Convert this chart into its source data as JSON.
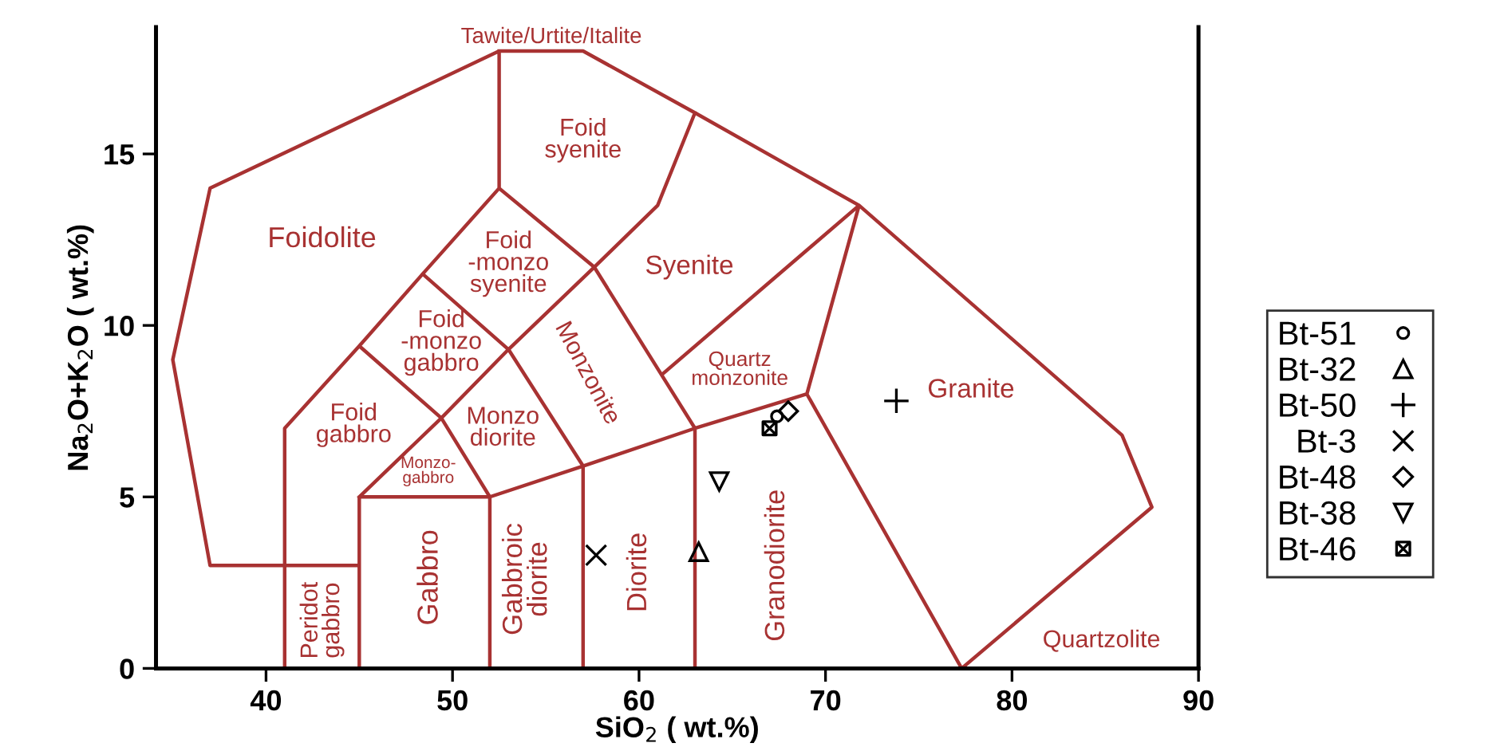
{
  "chart_data": {
    "type": "scatter",
    "xlabel": "SiO$_{2}$ ( wt.%)",
    "ylabel": "Na$_{2}$O+K$_{2}$O ( wt.%)",
    "xlim": [
      34.1,
      90
    ],
    "ylim": [
      0,
      18.7
    ],
    "xticks": [
      40,
      50,
      60,
      70,
      80,
      90
    ],
    "yticks": [
      0,
      5,
      10,
      15
    ],
    "grid": false,
    "legend": "right",
    "series": [
      {
        "name": "Bt-51",
        "color": "#000000",
        "marker": "circle",
        "x": [
          67.4
        ],
        "values": [
          7.35
        ]
      },
      {
        "name": "Bt-32",
        "color": "#000000",
        "marker": "triangle",
        "x": [
          63.2
        ],
        "values": [
          3.4
        ]
      },
      {
        "name": "Bt-50",
        "color": "#000000",
        "marker": "plus",
        "x": [
          73.8
        ],
        "values": [
          7.8
        ]
      },
      {
        "name": "Bt-3",
        "color": "#000000",
        "marker": "x",
        "x": [
          57.7
        ],
        "values": [
          3.3
        ]
      },
      {
        "name": "Bt-48",
        "color": "#000000",
        "marker": "diamond",
        "x": [
          68.0
        ],
        "values": [
          7.5
        ]
      },
      {
        "name": "Bt-38",
        "color": "#000000",
        "marker": "triangle_down",
        "x": [
          64.3
        ],
        "values": [
          5.45
        ]
      },
      {
        "name": "Bt-46",
        "color": "#000000",
        "marker": "cross",
        "x": [
          67.0
        ],
        "values": [
          7.0
        ]
      },
      {
        "type": "line",
        "color": "#a83232",
        "x": [
          41,
          37,
          35,
          37,
          52.5,
          57,
          63,
          71.8,
          85.9,
          87.5,
          77.3,
          null,
          41,
          41,
          45,
          48.4,
          52.5,
          52.5,
          null,
          41,
          45,
          45,
          52,
          52,
          null,
          45,
          45,
          52,
          null,
          45,
          49.4,
          52,
          null,
          52,
          57,
          63,
          69,
          77.3,
          null,
          57,
          57,
          null,
          63,
          63,
          null,
          45,
          49.4,
          53,
          57,
          null,
          48.4,
          53,
          57.6,
          61,
          63,
          null,
          52.5,
          57.6,
          63,
          null,
          61.3,
          71.8,
          69
        ],
        "values": [
          3,
          3,
          9,
          14,
          18,
          18,
          16.2,
          13.5,
          6.8,
          4.7,
          0,
          null,
          0,
          7,
          9.4,
          11.5,
          14,
          18,
          null,
          3,
          3,
          0,
          0,
          5,
          null,
          0,
          5,
          5,
          null,
          5,
          7.3,
          5,
          null,
          5,
          5.9,
          7,
          8,
          0,
          null,
          0,
          5.9,
          null,
          0,
          7,
          null,
          9.4,
          7.3,
          9.3,
          5.9,
          null,
          11.5,
          9.3,
          11.7,
          13.5,
          16.2,
          null,
          14,
          11.7,
          7,
          null,
          8.6,
          13.5,
          8
        ]
      }
    ],
    "annotations": [
      "Tawite/Urtite/Italite",
      "Foid\nsyenite",
      "Foidolite",
      "Foid\n-monzo\nsyenite",
      "Syenite",
      "Foid\n-monzo\ngabbro",
      "Monzonite",
      "Quartz\nmonzonite",
      "Granite",
      "Foid\ngabbro",
      "Monzo\ndiorite",
      "Monzo-\ngabbro",
      "Peridot\ngabbro",
      "Gabbro",
      "Gabbroic\ndiorite",
      "Diorite",
      "Granodiorite",
      "Quartzolite"
    ]
  }
}
